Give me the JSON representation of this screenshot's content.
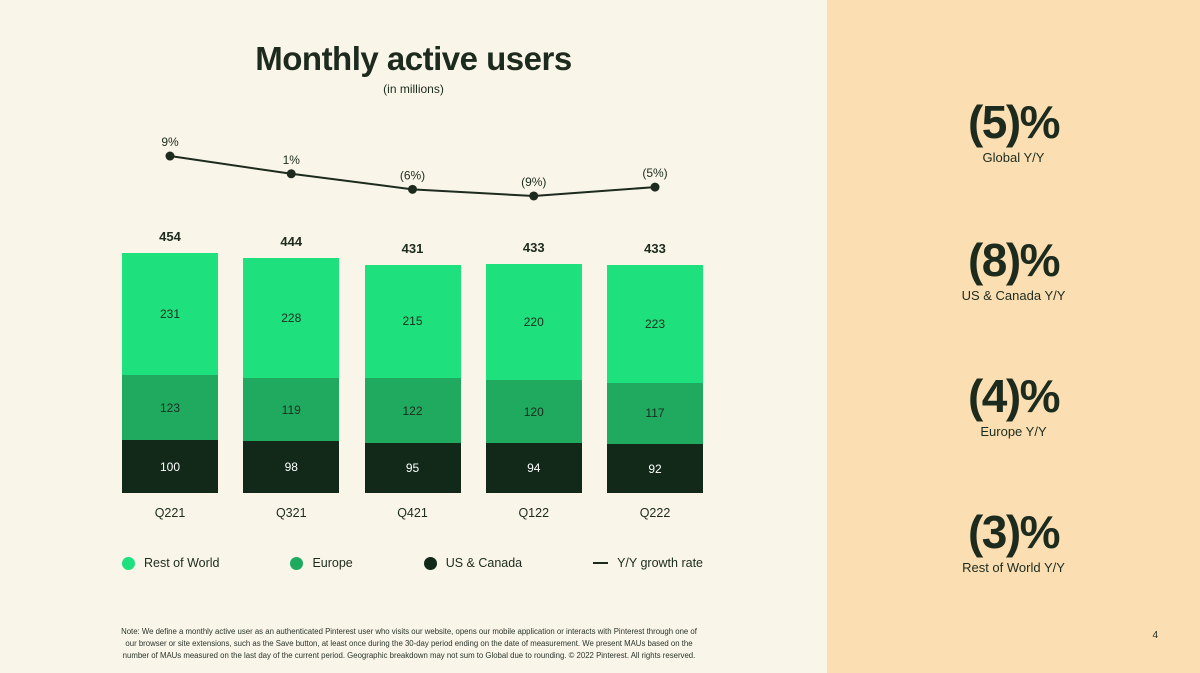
{
  "title": "Monthly active users",
  "subtitle": "(in millions)",
  "chart_data": {
    "type": "bar",
    "stacked": true,
    "categories": [
      "Q221",
      "Q321",
      "Q421",
      "Q122",
      "Q222"
    ],
    "totals": [
      454,
      444,
      431,
      433,
      433
    ],
    "series": [
      {
        "name": "Rest of World",
        "color": "#1ee17e",
        "text_color": "#1c2b1e",
        "values": [
          231,
          228,
          215,
          220,
          223
        ]
      },
      {
        "name": "Europe",
        "color": "#1faa60",
        "text_color": "#1c2b1e",
        "values": [
          123,
          119,
          122,
          120,
          117
        ]
      },
      {
        "name": "US & Canada",
        "color": "#12291a",
        "text_color": "#ffffff",
        "values": [
          100,
          98,
          95,
          94,
          92
        ]
      }
    ],
    "growth_line": {
      "name": "Y/Y growth rate",
      "values": [
        9,
        1,
        -6,
        -9,
        -5
      ],
      "labels": [
        "9%",
        "1%",
        "(6%)",
        "(9%)",
        "(5%)"
      ],
      "color": "#1c2b1e"
    },
    "ylim": [
      0,
      460
    ],
    "grid": false,
    "legend_position": "bottom"
  },
  "legend": [
    {
      "label": "Rest of World",
      "color": "#1ee17e",
      "type": "dot"
    },
    {
      "label": "Europe",
      "color": "#1faa60",
      "type": "dot"
    },
    {
      "label": "US & Canada",
      "color": "#12291a",
      "type": "dot"
    },
    {
      "label": "Y/Y growth rate",
      "color": "#1c2b1e",
      "type": "line"
    }
  ],
  "stats": [
    {
      "value": "(5)%",
      "label": "Global Y/Y"
    },
    {
      "value": "(8)%",
      "label": "US & Canada Y/Y"
    },
    {
      "value": "(4)%",
      "label": "Europe Y/Y"
    },
    {
      "value": "(3)%",
      "label": "Rest of World Y/Y"
    }
  ],
  "note": "Note: We define a monthly active user as an authenticated Pinterest user who visits our website, opens our mobile application or interacts with Pinterest through one of our browser or site extensions, such as the Save button, at least once during the 30-day period ending on the date of measurement. We present MAUs based on the number of MAUs measured on the last day of the current period. Geographic breakdown may not sum to Global due to rounding. © 2022 Pinterest. All rights reserved.",
  "page_number": "4",
  "colors": {
    "background": "#faf5e9",
    "panel": "#fbdfb2",
    "text": "#1c2b1e"
  }
}
